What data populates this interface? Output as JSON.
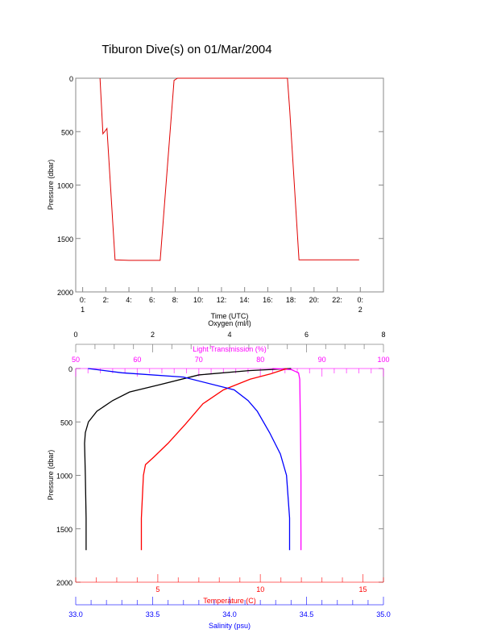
{
  "title": "Tiburon Dive(s) on 01/Mar/2004",
  "chart_data": [
    {
      "type": "line",
      "title": "Tiburon Dive(s) on 01/Mar/2004",
      "xlabel": "Time (UTC)",
      "ylabel": "Pressure (dbar)",
      "xlim": [
        -0.6,
        26
      ],
      "ylim": [
        2000,
        0
      ],
      "xticks": [
        {
          "v": 0,
          "l": "0:",
          "l2": "1"
        },
        {
          "v": 2,
          "l": "2:"
        },
        {
          "v": 4,
          "l": "4:"
        },
        {
          "v": 6,
          "l": "6:"
        },
        {
          "v": 8,
          "l": "8:"
        },
        {
          "v": 10,
          "l": "10:"
        },
        {
          "v": 12,
          "l": "12:"
        },
        {
          "v": 14,
          "l": "14:"
        },
        {
          "v": 16,
          "l": "16:"
        },
        {
          "v": 18,
          "l": "18:"
        },
        {
          "v": 20,
          "l": "20:"
        },
        {
          "v": 22,
          "l": "22:"
        },
        {
          "v": 24,
          "l": "0:",
          "l2": "2"
        }
      ],
      "yticks": [
        0,
        500,
        1000,
        1500,
        2000
      ],
      "series": [
        {
          "name": "pressure",
          "color": "#e00000",
          "x": [
            1.5,
            1.75,
            1.9,
            2.1,
            2.8,
            4,
            6.7,
            7.9,
            8.2,
            12,
            17.7,
            17.9,
            18.7,
            20,
            23.9
          ],
          "y": [
            0,
            520,
            500,
            470,
            1700,
            1705,
            1705,
            20,
            0,
            0,
            0,
            300,
            1700,
            1700,
            1700
          ]
        }
      ]
    },
    {
      "type": "line",
      "ylabel": "Pressure (dbar)",
      "ylim": [
        2000,
        0
      ],
      "yticks": [
        0,
        500,
        1000,
        1500,
        2000
      ],
      "axes": [
        {
          "name": "Oxygen (ml/l)",
          "color": "#000000",
          "range": [
            0,
            8
          ],
          "ticks": [
            0,
            2,
            4,
            6,
            8
          ]
        },
        {
          "name": "Light Transmission (%)",
          "color": "#ff00ff",
          "range": [
            50,
            100
          ],
          "ticks": [
            50,
            60,
            70,
            80,
            90,
            100
          ]
        },
        {
          "name": "Temperature (C)",
          "color": "#ff0000",
          "range": [
            1,
            16
          ],
          "ticks": [
            5,
            10,
            15
          ]
        },
        {
          "name": "Salinity (psu)",
          "color": "#0000ff",
          "range": [
            33,
            35
          ],
          "ticks": [
            "33.0",
            "33.5",
            "34.0",
            "34.5",
            "35.0"
          ]
        }
      ],
      "series": [
        {
          "name": "Oxygen",
          "axis": 0,
          "x": [
            5.6,
            4.5,
            3.2,
            2.2,
            1.4,
            0.96,
            0.55,
            0.33,
            0.25,
            0.23,
            0.25,
            0.27,
            0.27
          ],
          "y": [
            0,
            20,
            60,
            150,
            220,
            300,
            400,
            500,
            600,
            700,
            1000,
            1400,
            1700
          ]
        },
        {
          "name": "Light Transmission",
          "axis": 1,
          "x": [
            82,
            85,
            86.2,
            86.4,
            86.5,
            86.6,
            86.6,
            86.6
          ],
          "y": [
            0,
            10,
            40,
            100,
            500,
            1000,
            1500,
            1700
          ]
        },
        {
          "name": "Temperature",
          "axis": 2,
          "x": [
            11.3,
            10.5,
            9.5,
            8.2,
            7.2,
            6.35,
            5.5,
            4.8,
            4.4,
            4.3,
            4.2,
            4.2
          ],
          "y": [
            0,
            50,
            100,
            200,
            330,
            520,
            700,
            830,
            900,
            1000,
            1400,
            1700
          ]
        },
        {
          "name": "Salinity",
          "axis": 3,
          "x": [
            33.08,
            33.3,
            33.7,
            34.03,
            34.12,
            34.18,
            34.26,
            34.33,
            34.37,
            34.39,
            34.39
          ],
          "y": [
            0,
            40,
            80,
            200,
            300,
            400,
            600,
            800,
            1000,
            1400,
            1700
          ]
        }
      ]
    }
  ]
}
